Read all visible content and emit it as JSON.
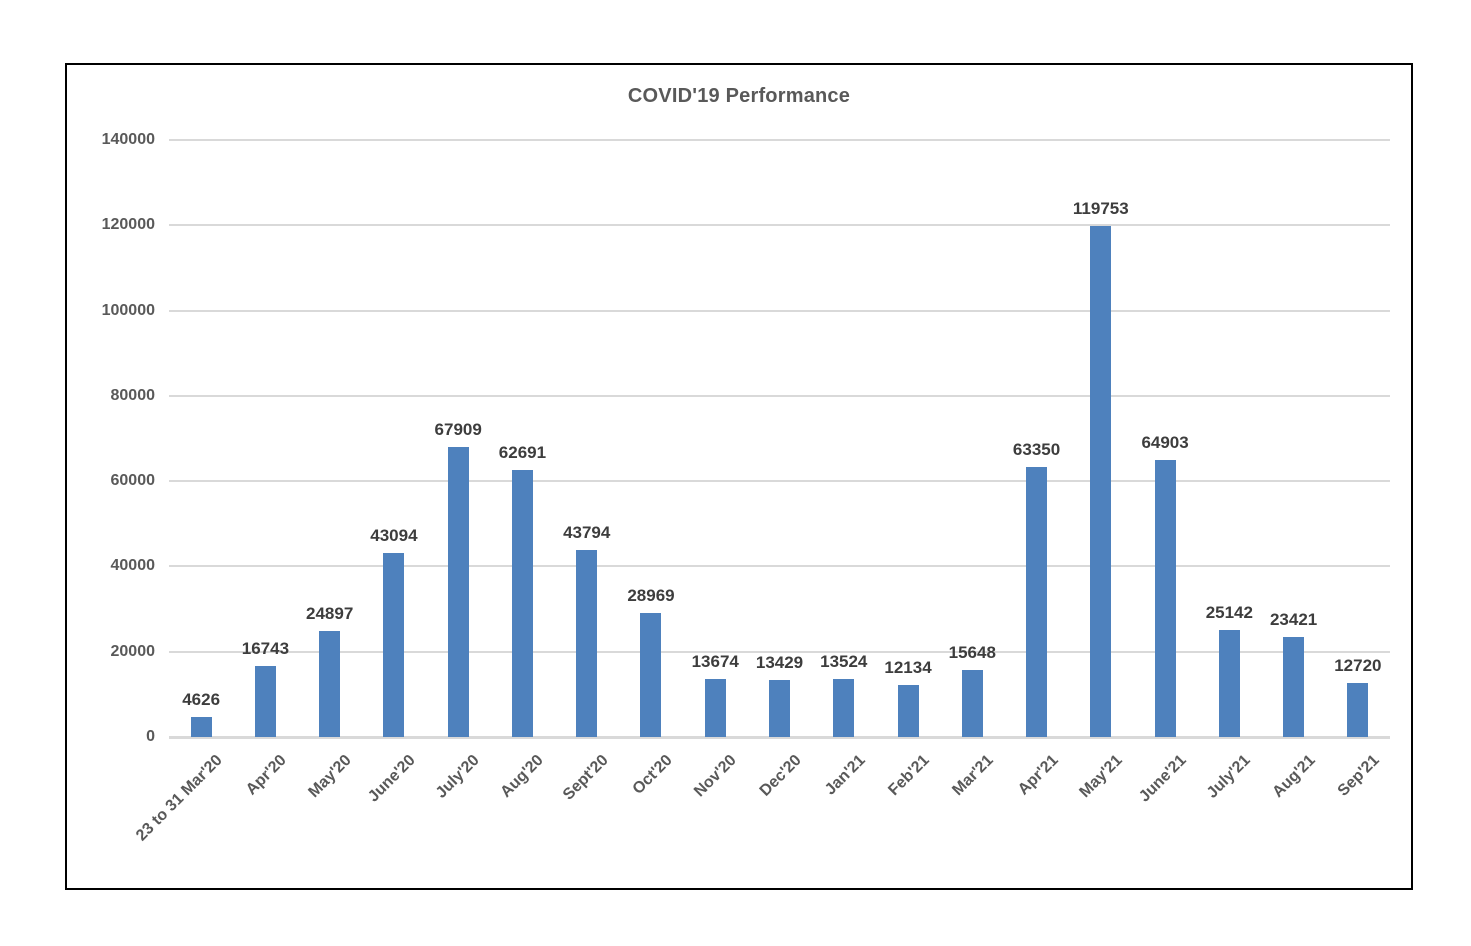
{
  "chart_data": {
    "type": "bar",
    "title": "COVID'19 Performance",
    "xlabel": "",
    "ylabel": "",
    "categories": [
      "23 to 31 Mar'20",
      "Apr'20",
      "May'20",
      "June'20",
      "July'20",
      "Aug'20",
      "Sept'20",
      "Oct'20",
      "Nov'20",
      "Dec'20",
      "Jan'21",
      "Feb'21",
      "Mar'21",
      "Apr'21",
      "May'21",
      "June'21",
      "July'21",
      "Aug'21",
      "Sep'21"
    ],
    "values": [
      4626,
      16743,
      24897,
      43094,
      67909,
      62691,
      43794,
      28969,
      13674,
      13429,
      13524,
      12134,
      15648,
      63350,
      119753,
      64903,
      25142,
      23421,
      12720
    ],
    "ylim": [
      0,
      140000
    ],
    "ytick_step": 20000,
    "ytick_labels": [
      "0",
      "20000",
      "40000",
      "60000",
      "80000",
      "100000",
      "120000",
      "140000"
    ],
    "grid": true,
    "legend": false,
    "data_labels_visible": true,
    "colors": {
      "bar": "#4E81BD",
      "gridline": "#D9D9D9",
      "axis_text": "#595959",
      "data_label": "#3D3D3D",
      "title_text": "#595959",
      "frame_border": "#000000",
      "background": "#FFFFFF"
    }
  }
}
